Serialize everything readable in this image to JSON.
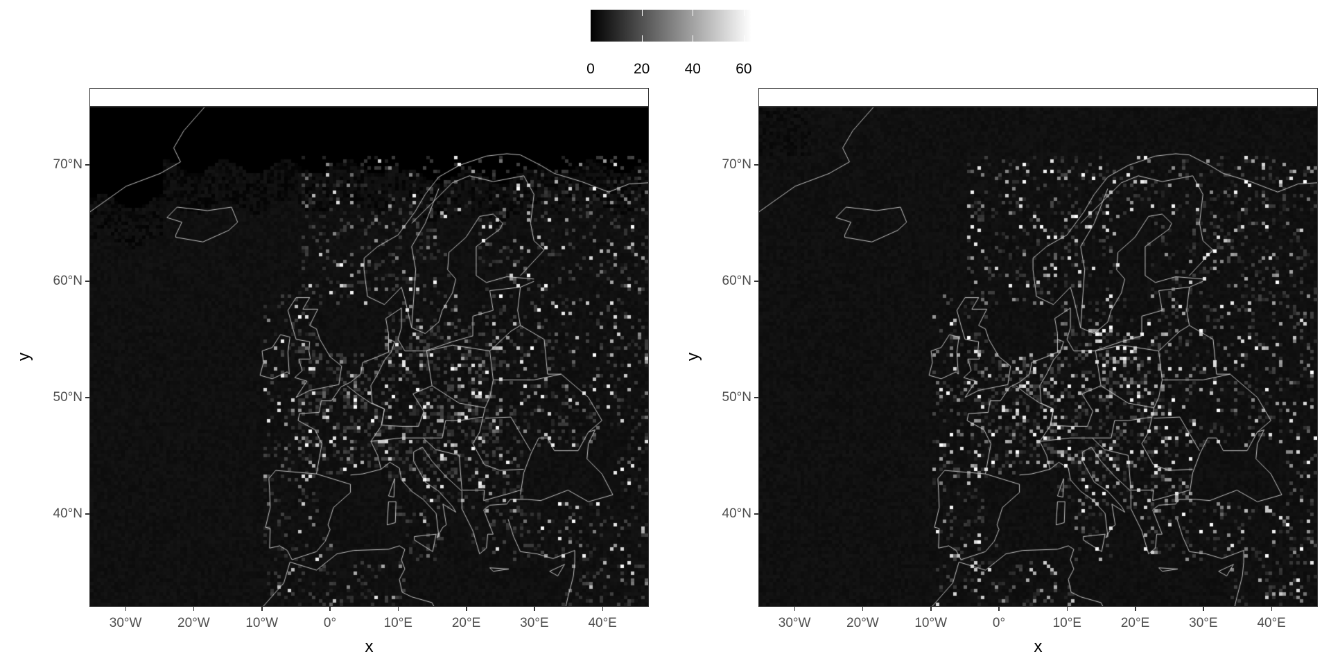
{
  "chart_data": {
    "type": "heatmap",
    "description_free": true,
    "legend": {
      "ticks": [
        0,
        20,
        40,
        60
      ],
      "range": [
        0,
        63
      ],
      "colors": [
        "#000000",
        "#ffffff"
      ],
      "position": "top"
    },
    "xlabel": "x",
    "ylabel": "y",
    "xlim": [
      -35.3,
      46.8
    ],
    "ylim": [
      32,
      75
    ],
    "x_ticks": [
      {
        "value": -30,
        "label": "30°W"
      },
      {
        "value": -20,
        "label": "20°W"
      },
      {
        "value": -10,
        "label": "10°W"
      },
      {
        "value": 0,
        "label": "0°"
      },
      {
        "value": 10,
        "label": "10°E"
      },
      {
        "value": 20,
        "label": "20°E"
      },
      {
        "value": 30,
        "label": "30°E"
      },
      {
        "value": 40,
        "label": "40°E"
      }
    ],
    "y_ticks": [
      {
        "value": 40,
        "label": "40°N"
      },
      {
        "value": 50,
        "label": "50°N"
      },
      {
        "value": 60,
        "label": "60°N"
      },
      {
        "value": 70,
        "label": "70°N"
      }
    ],
    "panels": [
      {
        "strip_label": "",
        "masked_north_of": 70,
        "background_value": 4,
        "coastline_color": "#d9d9d9"
      },
      {
        "strip_label": "",
        "masked_north_of": null,
        "background_value": 5,
        "coastline_color": "#d9d9d9"
      }
    ]
  }
}
